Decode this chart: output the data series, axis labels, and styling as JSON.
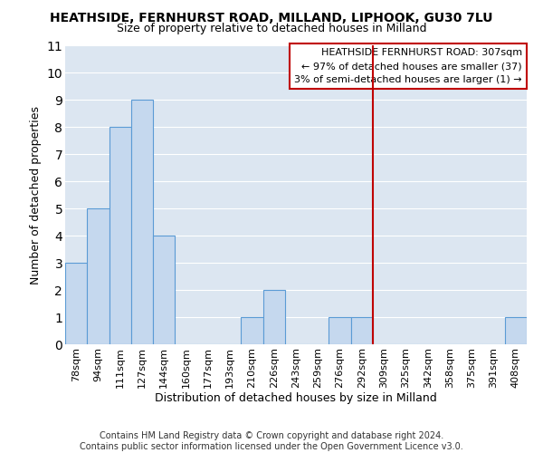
{
  "title": "HEATHSIDE, FERNHURST ROAD, MILLAND, LIPHOOK, GU30 7LU",
  "subtitle": "Size of property relative to detached houses in Milland",
  "xlabel": "Distribution of detached houses by size in Milland",
  "ylabel": "Number of detached properties",
  "categories": [
    "78sqm",
    "94sqm",
    "111sqm",
    "127sqm",
    "144sqm",
    "160sqm",
    "177sqm",
    "193sqm",
    "210sqm",
    "226sqm",
    "243sqm",
    "259sqm",
    "276sqm",
    "292sqm",
    "309sqm",
    "325sqm",
    "342sqm",
    "358sqm",
    "375sqm",
    "391sqm",
    "408sqm"
  ],
  "values": [
    3,
    5,
    8,
    9,
    4,
    0,
    0,
    0,
    1,
    2,
    0,
    0,
    1,
    1,
    0,
    0,
    0,
    0,
    0,
    0,
    1
  ],
  "bar_color": "#c5d8ee",
  "bar_edge_color": "#5b9bd5",
  "grid_color": "#ffffff",
  "bg_color": "#dce6f1",
  "vline_x": 14,
  "vline_color": "#c00000",
  "legend_title": "HEATHSIDE FERNHURST ROAD: 307sqm",
  "legend_line1": "← 97% of detached houses are smaller (37)",
  "legend_line2": "3% of semi-detached houses are larger (1) →",
  "legend_box_color": "#c00000",
  "ylim": [
    0,
    11
  ],
  "yticks": [
    0,
    1,
    2,
    3,
    4,
    5,
    6,
    7,
    8,
    9,
    10,
    11
  ],
  "footer": "Contains HM Land Registry data © Crown copyright and database right 2024.\nContains public sector information licensed under the Open Government Licence v3.0.",
  "title_fontsize": 10,
  "subtitle_fontsize": 9,
  "axis_fontsize": 9,
  "tick_fontsize": 8,
  "legend_fontsize": 8,
  "footer_fontsize": 7
}
